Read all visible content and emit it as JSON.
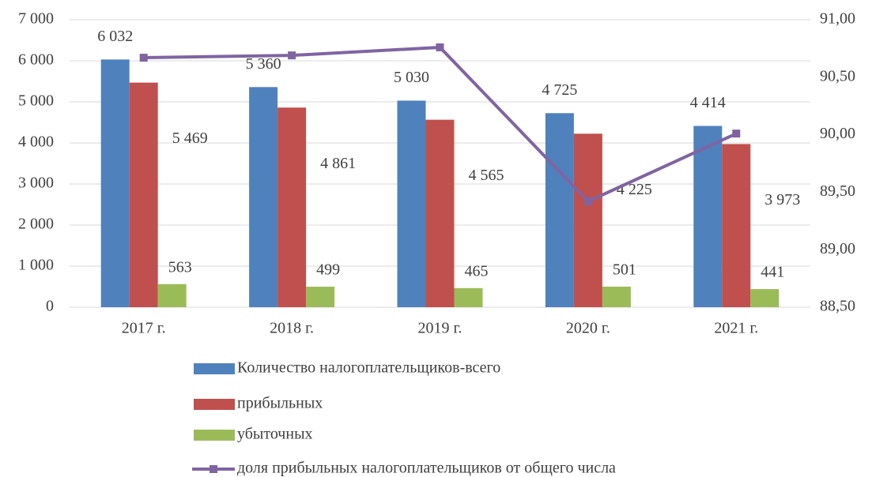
{
  "chart_data": {
    "type": "bar",
    "categories": [
      "2017 г.",
      "2018 г.",
      "2019 г.",
      "2020 г.",
      "2021 г."
    ],
    "series": [
      {
        "name": "Количество налогоплательщиков-всего",
        "color": "#4f81bd",
        "values": [
          6032,
          5360,
          5030,
          4725,
          4414
        ],
        "value_labels": [
          "6 032",
          "5 360",
          "5 030",
          "4 725",
          "4 414"
        ]
      },
      {
        "name": "прибыльных",
        "color": "#c0504d",
        "values": [
          5469,
          4861,
          4565,
          4225,
          3973
        ],
        "value_labels": [
          "5 469",
          "4 861",
          "4 565",
          "4 225",
          "3 973"
        ]
      },
      {
        "name": "убыточных",
        "color": "#9bbb59",
        "values": [
          563,
          499,
          465,
          501,
          441
        ]
      },
      {
        "name": "доля прибыльных налогоплательщиков от общего числа",
        "color": "#8064a2",
        "type": "line",
        "axis": "y2",
        "values": [
          90.67,
          90.69,
          90.76,
          89.42,
          90.01
        ]
      }
    ],
    "ylim": [
      0,
      7000
    ],
    "yticks": [
      {
        "value": 0,
        "label": "0"
      },
      {
        "value": 1000,
        "label": "1 000"
      },
      {
        "value": 2000,
        "label": "2 000"
      },
      {
        "value": 3000,
        "label": "3 000"
      },
      {
        "value": 4000,
        "label": "4 000"
      },
      {
        "value": 5000,
        "label": "5 000"
      },
      {
        "value": 6000,
        "label": "6 000"
      },
      {
        "value": 7000,
        "label": "7 000"
      }
    ],
    "y2lim": [
      88.5,
      91
    ],
    "y2ticks": [
      {
        "value": 88.5,
        "label": "88,50"
      },
      {
        "value": 89,
        "label": "89,00"
      },
      {
        "value": 89.5,
        "label": "89,50"
      },
      {
        "value": 90,
        "label": "90,00"
      },
      {
        "value": 90.5,
        "label": "90,50"
      },
      {
        "value": 91,
        "label": "91,00"
      }
    ],
    "grid": true,
    "legend": "bottom"
  }
}
